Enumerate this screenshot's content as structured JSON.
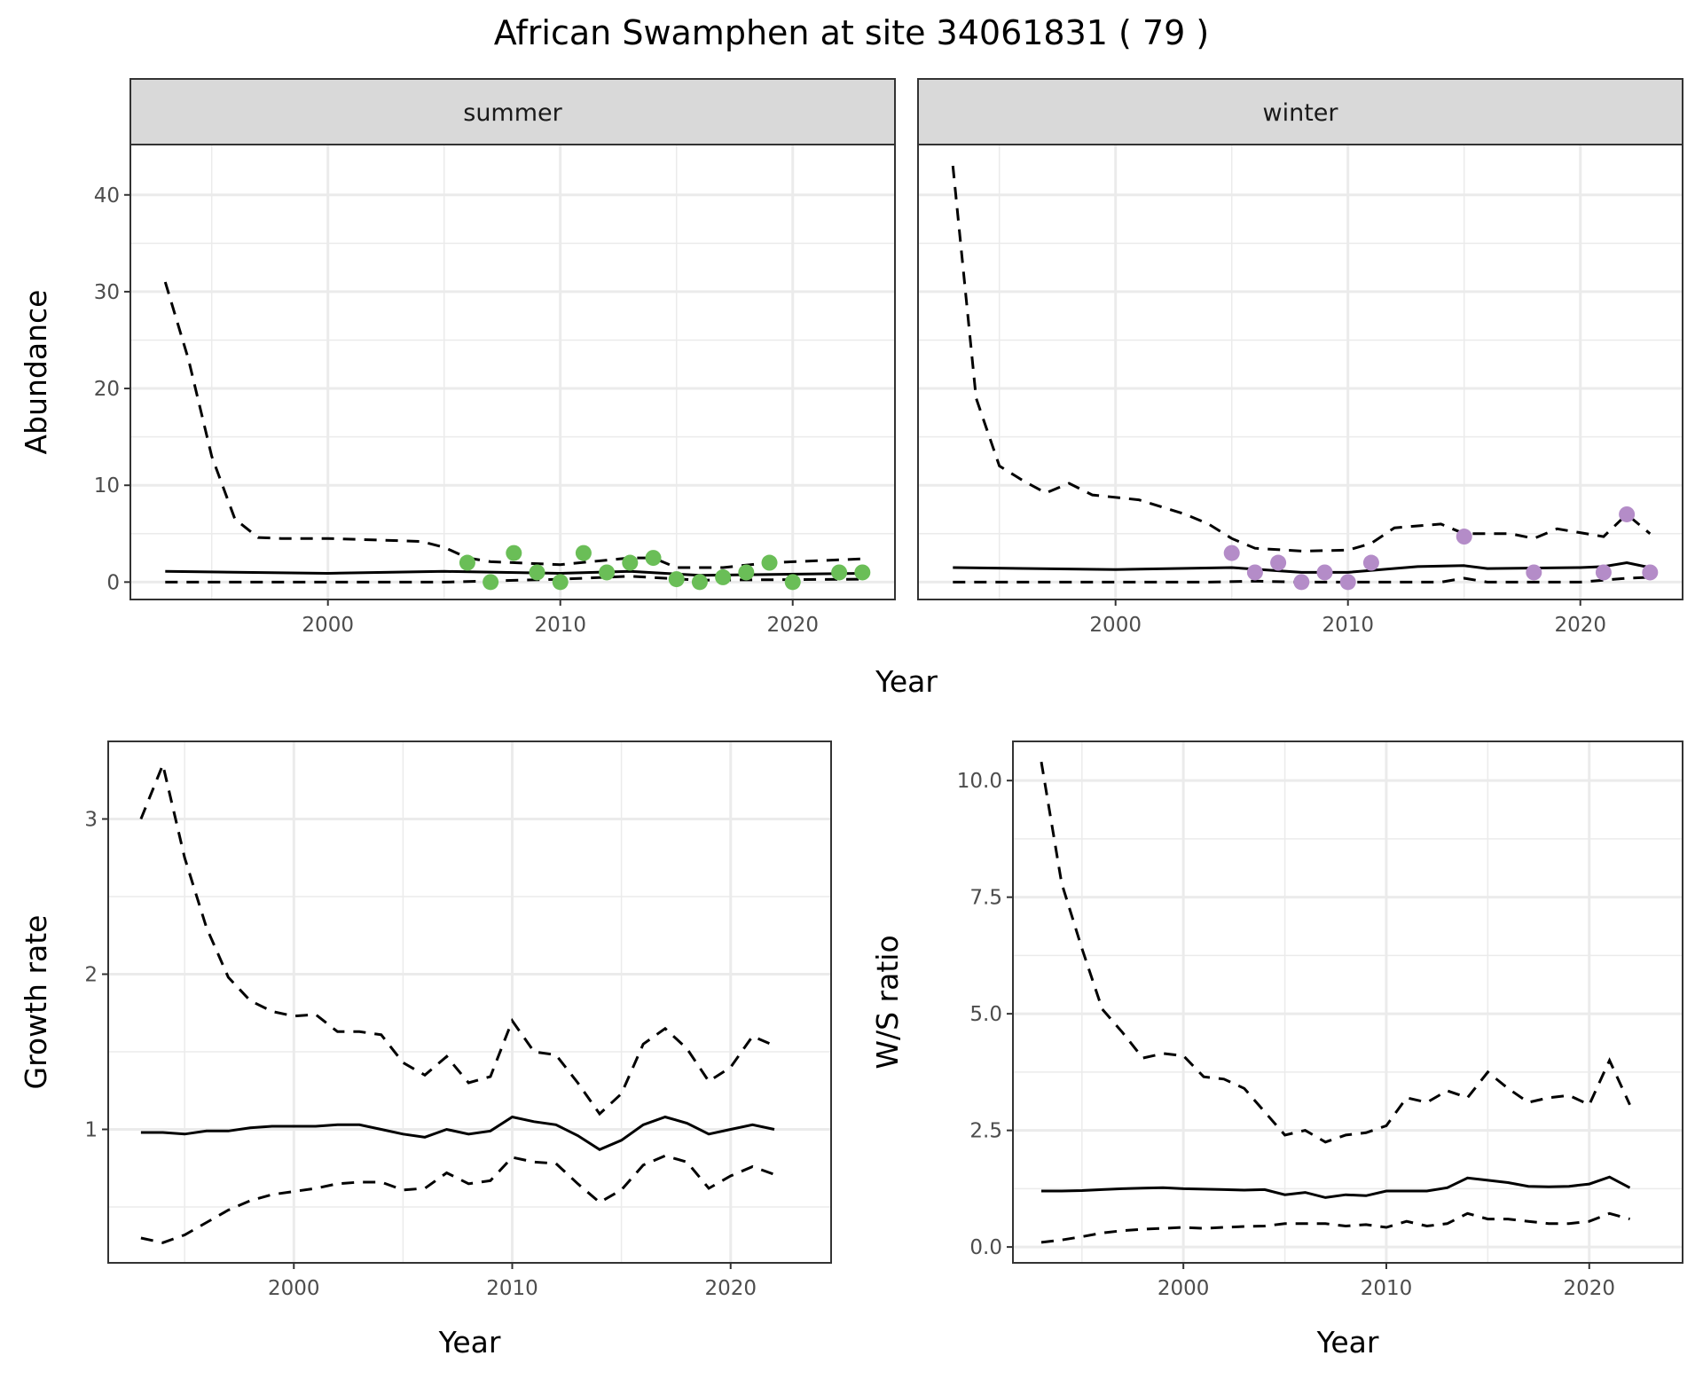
{
  "title": "African Swamphen at site 34061831 ( 79 )",
  "colors": {
    "summer": "#6ABE57",
    "winter": "#B48CC8",
    "strip_bg": "#D9D9D9",
    "grid": "#EBEBEB",
    "line": "#000000"
  },
  "chart_data": [
    {
      "type": "line",
      "facet": "summer",
      "xlabel": "Year",
      "ylabel": "Abundance",
      "xlim": [
        1991.5,
        2024.4
      ],
      "ylim": [
        -1.8,
        45.2
      ],
      "xticks": [
        2000,
        2010,
        2020
      ],
      "yticks": [
        0,
        10,
        20,
        30,
        40
      ],
      "xminor": [
        1995,
        2005,
        2015
      ],
      "yminor": [
        5,
        15,
        25,
        35
      ],
      "grid": true,
      "points": {
        "x": [
          2006,
          2007,
          2008,
          2009,
          2010,
          2011,
          2012,
          2013,
          2014,
          2015,
          2016,
          2017,
          2018,
          2019,
          2020,
          2022,
          2023
        ],
        "y": [
          2,
          0,
          3,
          1,
          0,
          3,
          1,
          2,
          2.5,
          0.3,
          0,
          0.5,
          1,
          2,
          0,
          1,
          1
        ]
      },
      "mean": {
        "x": [
          1993,
          2000,
          2005,
          2010,
          2013,
          2016,
          2023
        ],
        "y": [
          1.1,
          0.9,
          1.1,
          0.9,
          1.1,
          0.7,
          0.9
        ]
      },
      "upper": {
        "x": [
          1993,
          1994,
          1995,
          1996,
          1997,
          1998,
          2000,
          2004,
          2005,
          2006,
          2007,
          2010,
          2013,
          2014,
          2015,
          2017,
          2019,
          2023
        ],
        "y": [
          31,
          23,
          13,
          6.5,
          4.6,
          4.5,
          4.5,
          4.2,
          3.6,
          2.5,
          2.1,
          1.8,
          2.5,
          2.5,
          1.5,
          1.5,
          2.0,
          2.4
        ]
      },
      "lower": {
        "x": [
          1993,
          2005,
          2010,
          2013,
          2016,
          2023
        ],
        "y": [
          0,
          0,
          0.3,
          0.6,
          0.2,
          0.3
        ]
      }
    },
    {
      "type": "line",
      "facet": "winter",
      "xlabel": "Year",
      "ylabel": "Abundance",
      "xlim": [
        1991.5,
        2024.4
      ],
      "ylim": [
        -1.8,
        45.2
      ],
      "xticks": [
        2000,
        2010,
        2020
      ],
      "yticks": [
        0,
        10,
        20,
        30,
        40
      ],
      "xminor": [
        1995,
        2005,
        2015
      ],
      "yminor": [
        5,
        15,
        25,
        35
      ],
      "grid": true,
      "points": {
        "x": [
          2005,
          2006,
          2007,
          2008,
          2009,
          2010,
          2011,
          2015,
          2018,
          2021,
          2022,
          2023
        ],
        "y": [
          3,
          1,
          2,
          0,
          1,
          0,
          2,
          4.7,
          1,
          1,
          7,
          1
        ]
      },
      "mean": {
        "x": [
          1993,
          2000,
          2005,
          2008,
          2010,
          2013,
          2015,
          2016,
          2020,
          2021,
          2022,
          2023
        ],
        "y": [
          1.5,
          1.3,
          1.5,
          1.0,
          1.0,
          1.6,
          1.7,
          1.4,
          1.5,
          1.6,
          2.0,
          1.5
        ]
      },
      "upper": {
        "x": [
          1993,
          1994,
          1995,
          1996,
          1997,
          1998,
          1999,
          2001,
          2003,
          2004,
          2005,
          2006,
          2008,
          2010,
          2011,
          2012,
          2014,
          2015,
          2017,
          2018,
          2019,
          2021,
          2022,
          2023
        ],
        "y": [
          43,
          19,
          12,
          10.5,
          9.2,
          10.2,
          9,
          8.5,
          7,
          6,
          4.5,
          3.5,
          3.2,
          3.3,
          4,
          5.6,
          6,
          5,
          5,
          4.5,
          5.5,
          4.7,
          7,
          5
        ]
      },
      "lower": {
        "x": [
          1993,
          2004,
          2006,
          2008,
          2014,
          2015,
          2016,
          2020,
          2022,
          2023
        ],
        "y": [
          0,
          0,
          0.1,
          0,
          0,
          0.4,
          0,
          0,
          0.4,
          0.5
        ]
      }
    },
    {
      "type": "line",
      "xlabel": "Year",
      "ylabel": "Growth rate",
      "xlim": [
        1991.5,
        2024.6
      ],
      "ylim": [
        0.14,
        3.5
      ],
      "xticks": [
        2000,
        2010,
        2020
      ],
      "yticks": [
        1,
        2,
        3
      ],
      "xminor": [
        1995,
        2005,
        2015
      ],
      "yminor": [
        0.5,
        1.5,
        2.5
      ],
      "grid": true,
      "x": [
        1993,
        1994,
        1995,
        1996,
        1997,
        1998,
        1999,
        2000,
        2001,
        2002,
        2003,
        2004,
        2005,
        2006,
        2007,
        2008,
        2009,
        2010,
        2011,
        2012,
        2013,
        2014,
        2015,
        2016,
        2017,
        2018,
        2019,
        2020,
        2021,
        2022
      ],
      "mean": [
        0.98,
        0.98,
        0.97,
        0.99,
        0.99,
        1.01,
        1.02,
        1.02,
        1.02,
        1.03,
        1.03,
        1.0,
        0.97,
        0.95,
        1.0,
        0.97,
        0.99,
        1.08,
        1.05,
        1.03,
        0.96,
        0.87,
        0.93,
        1.03,
        1.08,
        1.04,
        0.97,
        1.0,
        1.03,
        1.0
      ],
      "upper": [
        3.0,
        3.35,
        2.75,
        2.3,
        1.98,
        1.83,
        1.76,
        1.73,
        1.74,
        1.63,
        1.63,
        1.61,
        1.43,
        1.35,
        1.47,
        1.3,
        1.34,
        1.7,
        1.5,
        1.48,
        1.3,
        1.1,
        1.23,
        1.55,
        1.65,
        1.52,
        1.31,
        1.4,
        1.6,
        1.54
      ],
      "lower": [
        0.3,
        0.27,
        0.32,
        0.4,
        0.48,
        0.54,
        0.58,
        0.6,
        0.62,
        0.65,
        0.66,
        0.66,
        0.61,
        0.62,
        0.72,
        0.65,
        0.67,
        0.82,
        0.79,
        0.78,
        0.65,
        0.53,
        0.61,
        0.77,
        0.83,
        0.79,
        0.62,
        0.7,
        0.76,
        0.71
      ]
    },
    {
      "type": "line",
      "xlabel": "Year",
      "ylabel": "W/S ratio",
      "xlim": [
        1991.6,
        2024.6
      ],
      "ylim": [
        -0.34,
        10.84
      ],
      "xticks": [
        2000,
        2010,
        2020
      ],
      "yticks": [
        0,
        2.5,
        5,
        7.5,
        10
      ],
      "ytick_labels": [
        "0.0",
        "2.5",
        "5.0",
        "7.5",
        "10.0"
      ],
      "xminor": [
        1995,
        2005,
        2015
      ],
      "yminor": [
        1.25,
        3.75,
        6.25,
        8.75
      ],
      "grid": true,
      "x": [
        1993,
        1994,
        1995,
        1996,
        1997,
        1998,
        1999,
        2000,
        2001,
        2002,
        2003,
        2004,
        2005,
        2006,
        2007,
        2008,
        2009,
        2010,
        2011,
        2012,
        2013,
        2014,
        2015,
        2016,
        2017,
        2018,
        2019,
        2020,
        2021,
        2022
      ],
      "mean": [
        1.2,
        1.2,
        1.21,
        1.23,
        1.25,
        1.26,
        1.27,
        1.25,
        1.24,
        1.23,
        1.22,
        1.23,
        1.12,
        1.17,
        1.06,
        1.12,
        1.1,
        1.2,
        1.2,
        1.2,
        1.27,
        1.48,
        1.43,
        1.38,
        1.3,
        1.29,
        1.3,
        1.35,
        1.5,
        1.27
      ],
      "upper": [
        10.4,
        7.8,
        6.4,
        5.1,
        4.6,
        4.05,
        4.15,
        4.1,
        3.65,
        3.6,
        3.4,
        2.9,
        2.4,
        2.5,
        2.25,
        2.4,
        2.45,
        2.6,
        3.2,
        3.1,
        3.35,
        3.2,
        3.75,
        3.4,
        3.1,
        3.2,
        3.25,
        3.05,
        4.0,
        3.05
      ],
      "lower": [
        0.1,
        0.15,
        0.22,
        0.3,
        0.35,
        0.38,
        0.4,
        0.42,
        0.4,
        0.42,
        0.44,
        0.45,
        0.5,
        0.5,
        0.5,
        0.45,
        0.48,
        0.42,
        0.55,
        0.45,
        0.5,
        0.72,
        0.6,
        0.6,
        0.55,
        0.5,
        0.5,
        0.55,
        0.72,
        0.6
      ]
    }
  ]
}
